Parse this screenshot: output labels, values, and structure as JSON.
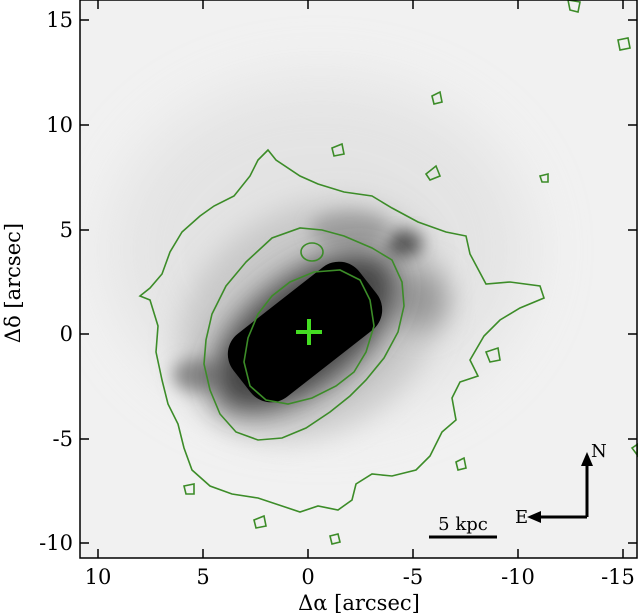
{
  "figure": {
    "xlabel": "Δα [arcsec]",
    "ylabel": "Δδ [arcsec]",
    "x_ticks": [
      "10",
      "5",
      "0",
      "-5",
      "-10",
      "-15"
    ],
    "y_ticks": [
      "15",
      "10",
      "5",
      "0",
      "-5",
      "-10"
    ],
    "x_range_arcsec": [
      11,
      -16
    ],
    "y_range_arcsec": [
      -11,
      16
    ],
    "scale_bar_label": "5 kpc",
    "compass_north": "N",
    "compass_east": "E",
    "colors": {
      "contour": "#3c8c28",
      "center_marker": "#44dd22",
      "image_dark": "#000000",
      "image_background": "#f2f2f2"
    }
  }
}
